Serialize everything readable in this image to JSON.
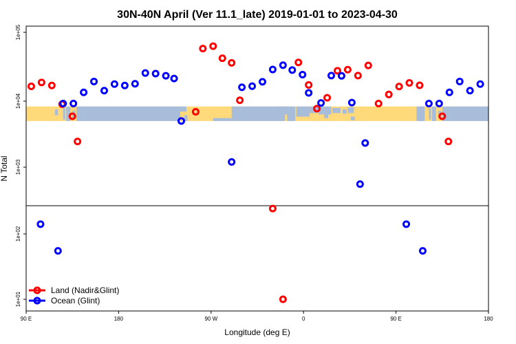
{
  "chart_data": {
    "type": "scatter",
    "title": "30N-40N April (Ver 11.1_late)   2019-01-01 to 2023-04-30",
    "xlabel": "Longitude (deg E)",
    "ylabel": "N Total",
    "y_scale": "log",
    "xlim": [
      90,
      540
    ],
    "ylim": [
      10,
      100000
    ],
    "x_ticks": [
      {
        "value": 90,
        "label": "90 E"
      },
      {
        "value": 180,
        "label": "180"
      },
      {
        "value": 270,
        "label": "90 W"
      },
      {
        "value": 360,
        "label": "0"
      },
      {
        "value": 450,
        "label": "90 E"
      },
      {
        "value": 540,
        "label": "180"
      }
    ],
    "y_ticks": [
      {
        "value": 10,
        "label": "1e+01"
      },
      {
        "value": 100,
        "label": "1e+02"
      },
      {
        "value": 1000,
        "label": "1e+03"
      },
      {
        "value": 10000,
        "label": "1e+04"
      },
      {
        "value": 100000,
        "label": "1e+05"
      }
    ],
    "map_strip": {
      "lat_range": "30N-40N",
      "y_range_data": [
        5000,
        8300
      ]
    },
    "series": [
      {
        "name": "Land (Nadir&Glint)",
        "color": "#ff0000",
        "points": [
          {
            "x": 95,
            "y": 16400
          },
          {
            "x": 105,
            "y": 18700
          },
          {
            "x": 115,
            "y": 16900
          },
          {
            "x": 125,
            "y": 9000
          },
          {
            "x": 135,
            "y": 5900
          },
          {
            "x": 140,
            "y": 2450
          },
          {
            "x": 255,
            "y": 6900
          },
          {
            "x": 262,
            "y": 58000
          },
          {
            "x": 272,
            "y": 63000
          },
          {
            "x": 281,
            "y": 42000
          },
          {
            "x": 290,
            "y": 36000
          },
          {
            "x": 298,
            "y": 10300
          },
          {
            "x": 330,
            "y": 240
          },
          {
            "x": 355,
            "y": 36500
          },
          {
            "x": 340,
            "y": 10
          },
          {
            "x": 365,
            "y": 17200
          },
          {
            "x": 373,
            "y": 7700
          },
          {
            "x": 383,
            "y": 11200
          },
          {
            "x": 393,
            "y": 27600
          },
          {
            "x": 403,
            "y": 28700
          },
          {
            "x": 413,
            "y": 23500
          },
          {
            "x": 423,
            "y": 33000
          },
          {
            "x": 433,
            "y": 9200
          },
          {
            "x": 443,
            "y": 12500
          },
          {
            "x": 453,
            "y": 16300
          },
          {
            "x": 463,
            "y": 18400
          },
          {
            "x": 473,
            "y": 17000
          },
          {
            "x": 495,
            "y": 5900
          },
          {
            "x": 501,
            "y": 2450
          }
        ]
      },
      {
        "name": "Ocean (Glint)",
        "color": "#0000ff",
        "points": [
          {
            "x": 104,
            "y": 140
          },
          {
            "x": 121,
            "y": 55
          },
          {
            "x": 126,
            "y": 9200
          },
          {
            "x": 136,
            "y": 9200
          },
          {
            "x": 146,
            "y": 13400
          },
          {
            "x": 156,
            "y": 19300
          },
          {
            "x": 166,
            "y": 14200
          },
          {
            "x": 176,
            "y": 17700
          },
          {
            "x": 186,
            "y": 16900
          },
          {
            "x": 196,
            "y": 17900
          },
          {
            "x": 206,
            "y": 25600
          },
          {
            "x": 216,
            "y": 25100
          },
          {
            "x": 226,
            "y": 23400
          },
          {
            "x": 234,
            "y": 21300
          },
          {
            "x": 241,
            "y": 5000
          },
          {
            "x": 290,
            "y": 1200
          },
          {
            "x": 300,
            "y": 15900
          },
          {
            "x": 310,
            "y": 16500
          },
          {
            "x": 320,
            "y": 19100
          },
          {
            "x": 330,
            "y": 28800
          },
          {
            "x": 340,
            "y": 33300
          },
          {
            "x": 349,
            "y": 28300
          },
          {
            "x": 359,
            "y": 24300
          },
          {
            "x": 365,
            "y": 13200
          },
          {
            "x": 377,
            "y": 9400
          },
          {
            "x": 387,
            "y": 23500
          },
          {
            "x": 397,
            "y": 23300
          },
          {
            "x": 407,
            "y": 9500
          },
          {
            "x": 415,
            "y": 557
          },
          {
            "x": 420,
            "y": 2320
          },
          {
            "x": 460,
            "y": 140
          },
          {
            "x": 476,
            "y": 55
          },
          {
            "x": 482,
            "y": 9200
          },
          {
            "x": 492,
            "y": 9200
          },
          {
            "x": 502,
            "y": 13400
          },
          {
            "x": 512,
            "y": 19300
          },
          {
            "x": 522,
            "y": 14200
          },
          {
            "x": 532,
            "y": 17700
          }
        ]
      }
    ],
    "legend": {
      "placement": "bottom-left",
      "entries": [
        {
          "label": "Land (Nadir&Glint)",
          "color": "#ff0000"
        },
        {
          "label": "Ocean (Glint)",
          "color": "#0000ff"
        }
      ]
    }
  }
}
